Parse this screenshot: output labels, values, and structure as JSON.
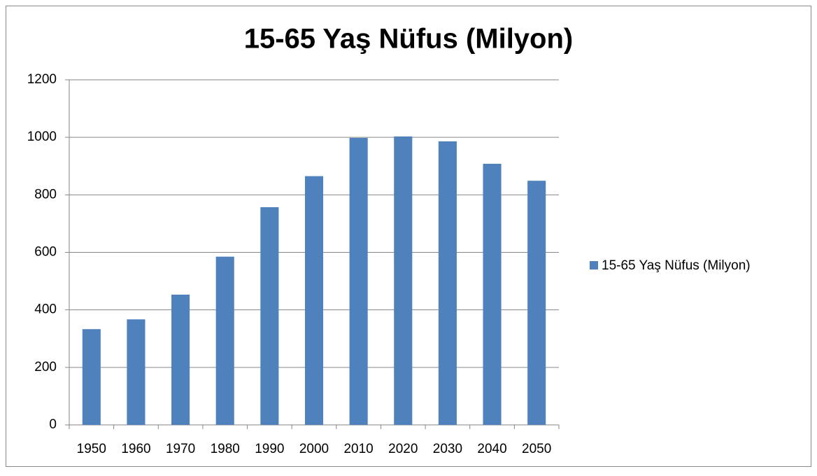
{
  "chart_data": {
    "type": "bar",
    "title": "15-65 Yaş Nüfus (Milyon)",
    "categories": [
      "1950",
      "1960",
      "1970",
      "1980",
      "1990",
      "2000",
      "2010",
      "2020",
      "2030",
      "2040",
      "2050"
    ],
    "series": [
      {
        "name": "15-65 Yaş Nüfus (Milyon)",
        "color": "#4f81bd",
        "values": [
          333,
          367,
          453,
          585,
          757,
          865,
          998,
          1003,
          986,
          908,
          849
        ]
      }
    ],
    "ylim": [
      0,
      1200
    ],
    "yticks": [
      0,
      200,
      400,
      600,
      800,
      1000,
      1200
    ],
    "grid": true,
    "legend": "right"
  }
}
